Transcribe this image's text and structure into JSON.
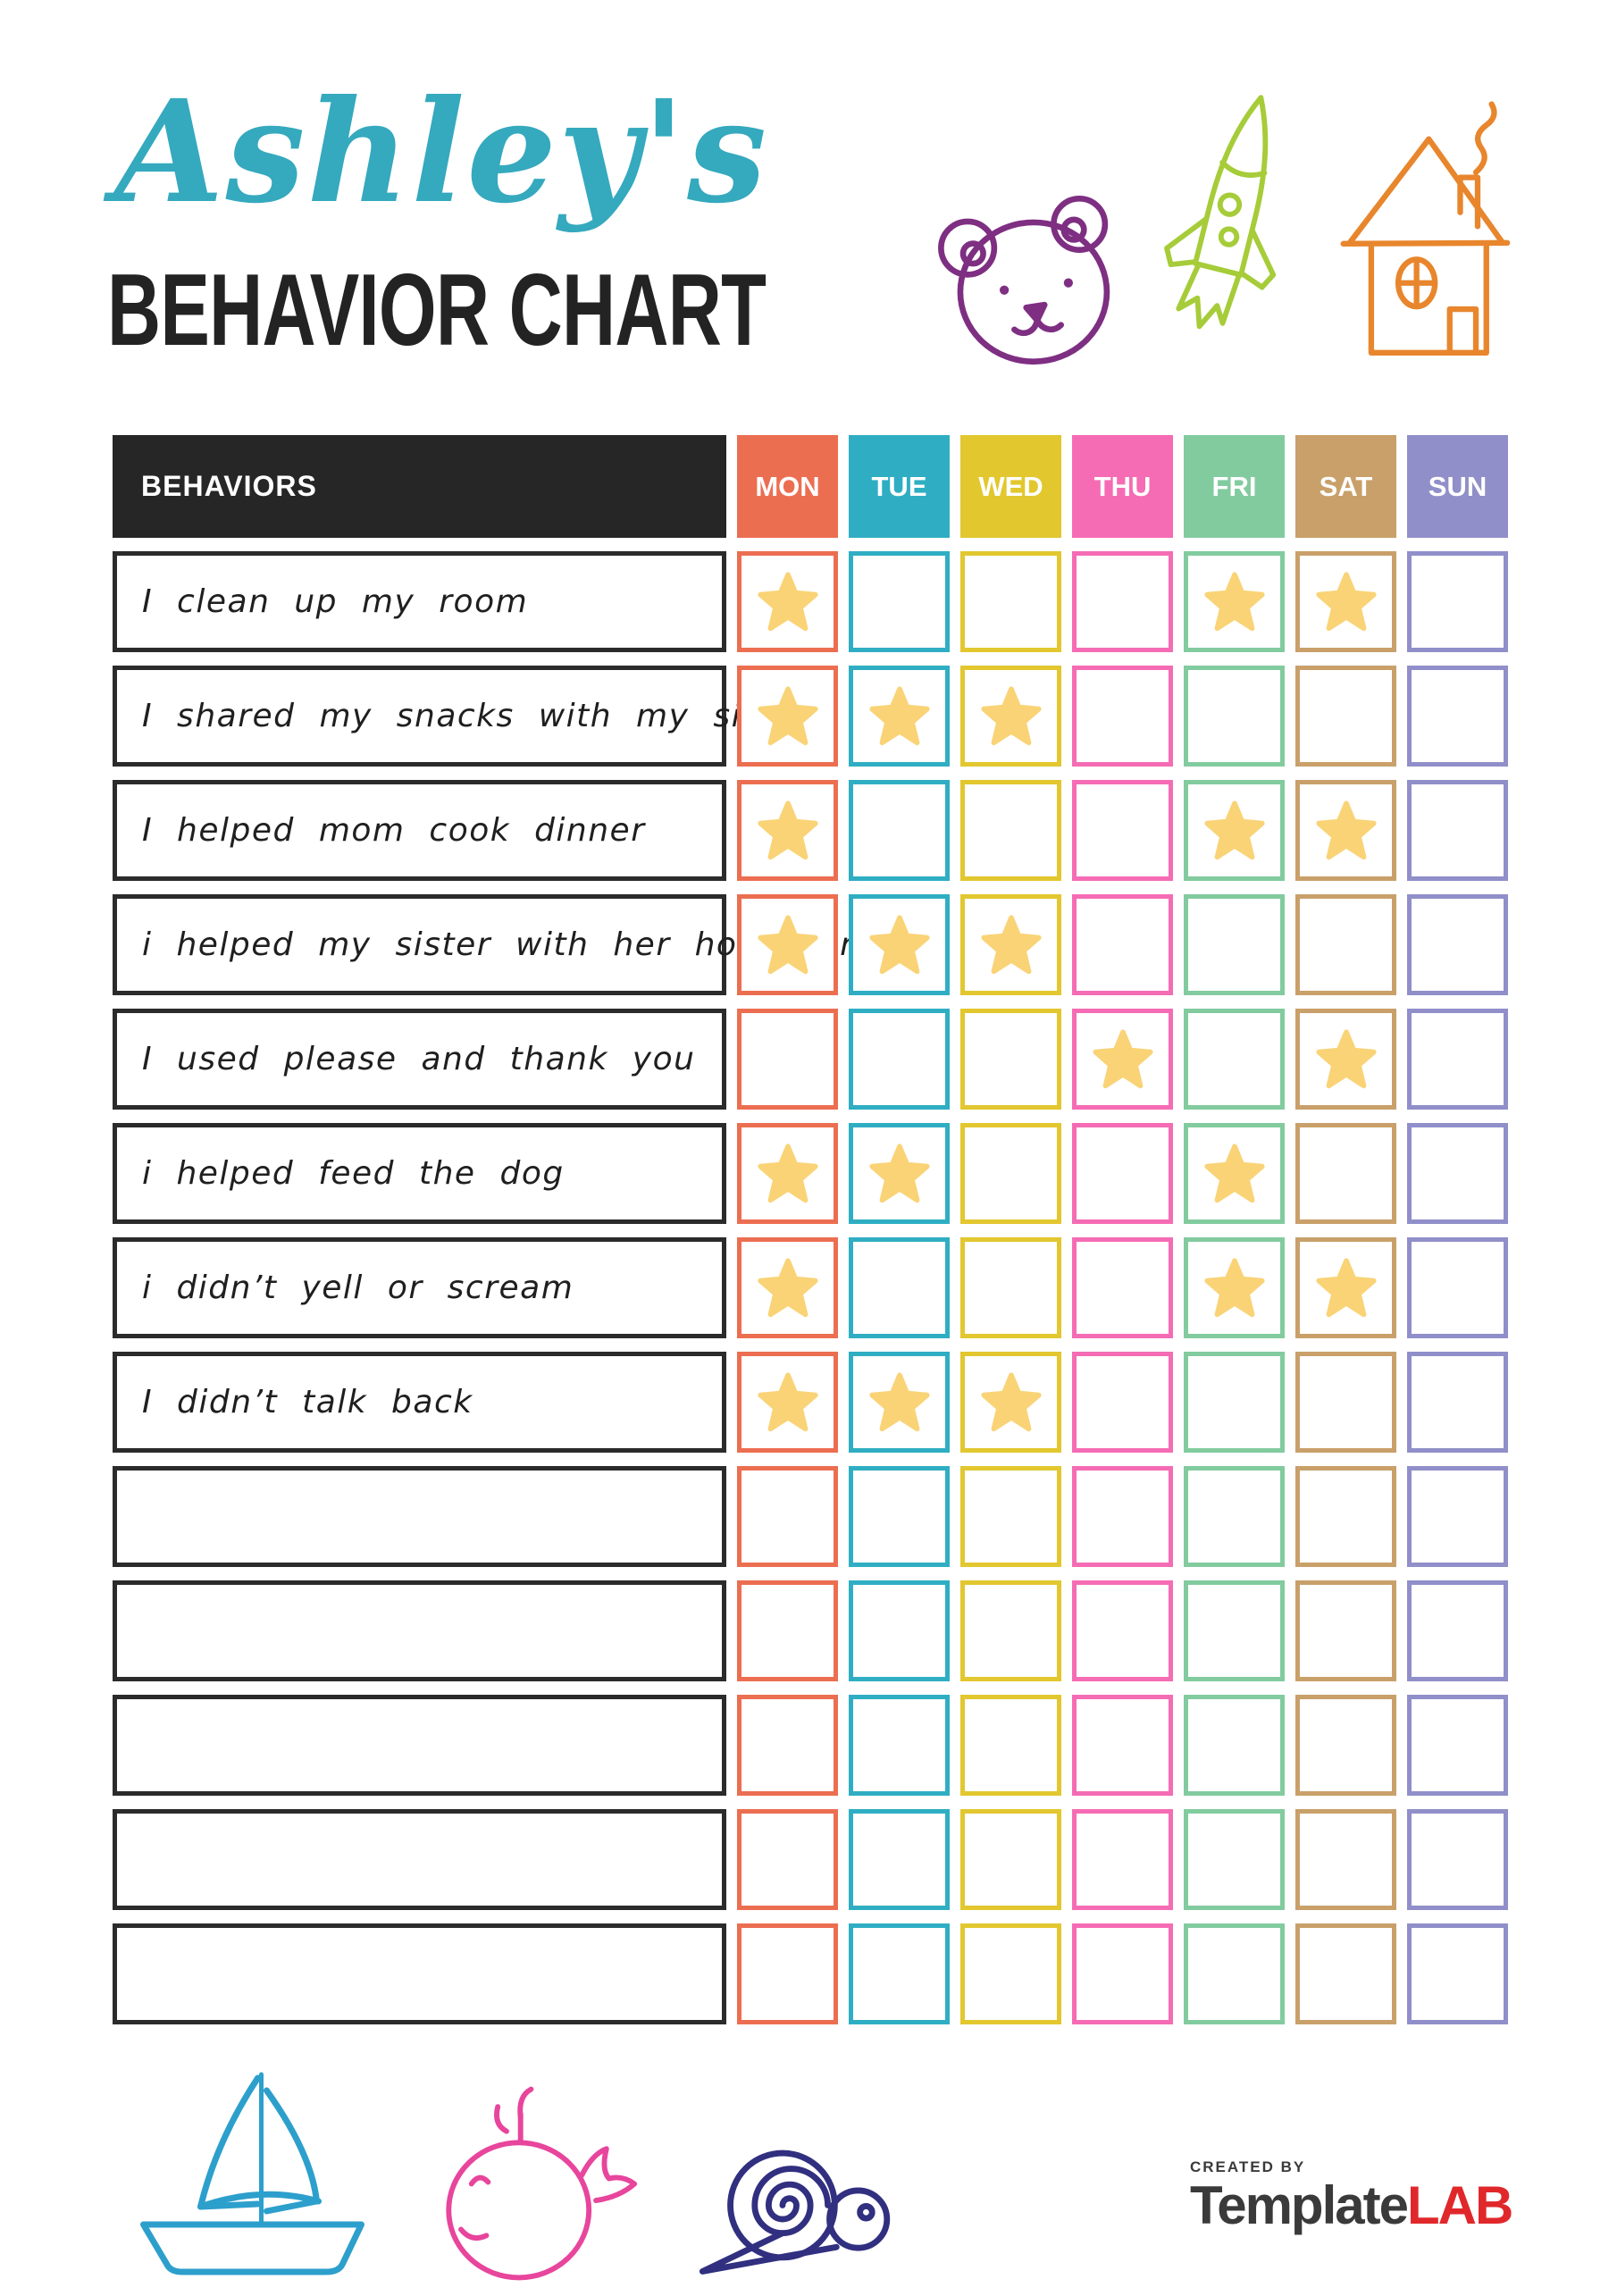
{
  "page": {
    "title_script": "Ashley's",
    "title_main": "BEHAVIOR CHART"
  },
  "colors": {
    "title_script": "#35A9BE",
    "title_main": "#232323",
    "header_bg": "#262626",
    "star": "#F9D376",
    "bear": "#7E2F82",
    "rocket": "#A6CC39",
    "house": "#E8862D",
    "sailboat": "#2D9FCC",
    "whale": "#E8459C",
    "snail": "#312F7F",
    "logo_dark": "#3A3A3A",
    "logo_red": "#E0282B"
  },
  "table": {
    "behaviors_header": "BEHAVIORS",
    "days": [
      {
        "label": "MON",
        "color": "#EC6E51"
      },
      {
        "label": "TUE",
        "color": "#2FAEC3"
      },
      {
        "label": "WED",
        "color": "#E2C72F"
      },
      {
        "label": "THU",
        "color": "#F56CB4"
      },
      {
        "label": "FRI",
        "color": "#82CB9F"
      },
      {
        "label": "SAT",
        "color": "#C9A06A"
      },
      {
        "label": "SUN",
        "color": "#908FC9"
      }
    ],
    "rows": [
      {
        "label": "I clean up my room",
        "stars": [
          1,
          0,
          0,
          0,
          1,
          1,
          0
        ]
      },
      {
        "label": "I shared my snacks with my sister",
        "stars": [
          1,
          1,
          1,
          0,
          0,
          0,
          0
        ]
      },
      {
        "label": "I helped mom cook dinner",
        "stars": [
          1,
          0,
          0,
          0,
          1,
          1,
          0
        ]
      },
      {
        "label": "i helped my sister with her homework",
        "stars": [
          1,
          1,
          1,
          0,
          0,
          0,
          0
        ]
      },
      {
        "label": "I used please and thank you",
        "stars": [
          0,
          0,
          0,
          1,
          0,
          1,
          0
        ]
      },
      {
        "label": "i helped feed the dog",
        "stars": [
          1,
          1,
          0,
          0,
          1,
          0,
          0
        ]
      },
      {
        "label": "i didn’t yell or scream",
        "stars": [
          1,
          0,
          0,
          0,
          1,
          1,
          0
        ]
      },
      {
        "label": "I didn’t talk back",
        "stars": [
          1,
          1,
          1,
          0,
          0,
          0,
          0
        ]
      },
      {
        "label": "",
        "stars": [
          0,
          0,
          0,
          0,
          0,
          0,
          0
        ]
      },
      {
        "label": "",
        "stars": [
          0,
          0,
          0,
          0,
          0,
          0,
          0
        ]
      },
      {
        "label": "",
        "stars": [
          0,
          0,
          0,
          0,
          0,
          0,
          0
        ]
      },
      {
        "label": "",
        "stars": [
          0,
          0,
          0,
          0,
          0,
          0,
          0
        ]
      },
      {
        "label": "",
        "stars": [
          0,
          0,
          0,
          0,
          0,
          0,
          0
        ]
      }
    ]
  },
  "footer": {
    "created_by": "CREATED BY",
    "brand_name": "Template",
    "brand_suffix": "LAB"
  }
}
